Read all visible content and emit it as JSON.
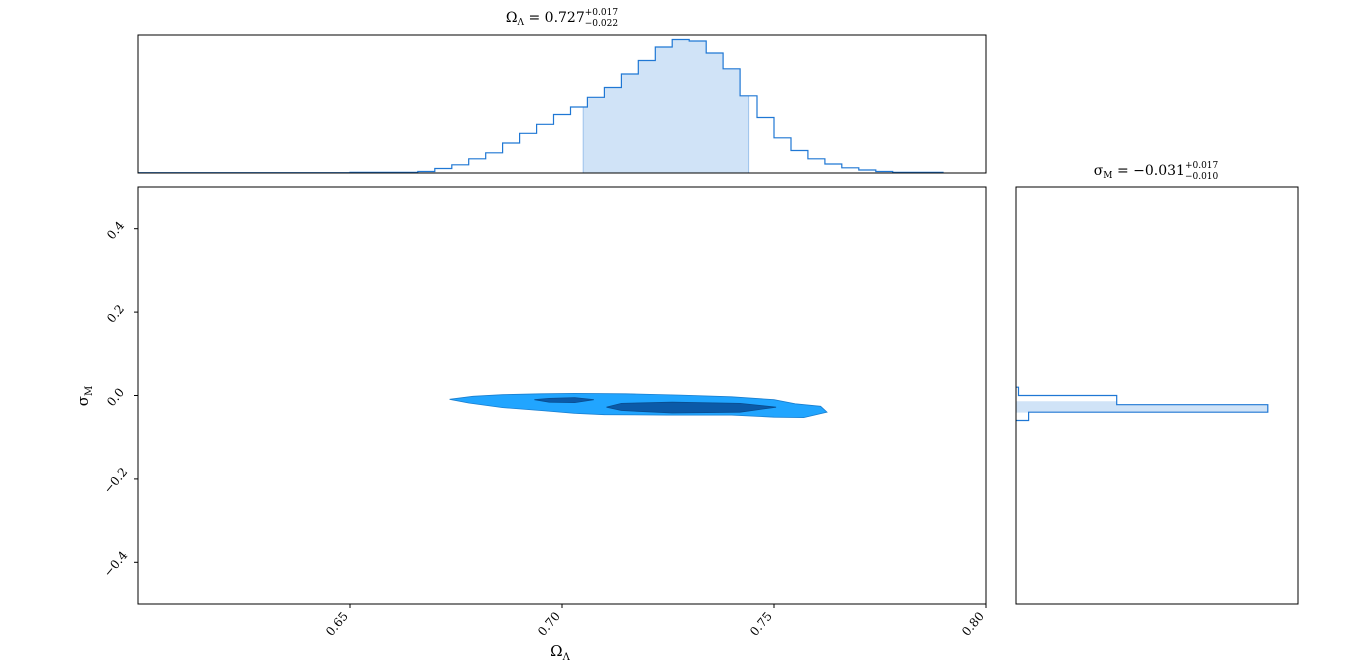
{
  "chart_data": [
    {
      "type": "histogram",
      "panel": "top-marginal",
      "title": {
        "symbol": "Ω",
        "sub": "Λ",
        "value": "0.727",
        "plus": "+0.017",
        "minus": "−0.022"
      },
      "xlim": [
        0.6,
        0.8
      ],
      "bins": [
        {
          "x0": 0.6,
          "x1": 0.65,
          "y": 0.2
        },
        {
          "x0": 0.65,
          "x1": 0.666,
          "y": 0.5
        },
        {
          "x0": 0.666,
          "x1": 0.67,
          "y": 1.0
        },
        {
          "x0": 0.67,
          "x1": 0.674,
          "y": 3.0
        },
        {
          "x0": 0.674,
          "x1": 0.678,
          "y": 5.5
        },
        {
          "x0": 0.678,
          "x1": 0.682,
          "y": 9.5
        },
        {
          "x0": 0.682,
          "x1": 0.686,
          "y": 13.5
        },
        {
          "x0": 0.686,
          "x1": 0.69,
          "y": 20.0
        },
        {
          "x0": 0.69,
          "x1": 0.694,
          "y": 26.5
        },
        {
          "x0": 0.694,
          "x1": 0.698,
          "y": 32.5
        },
        {
          "x0": 0.698,
          "x1": 0.702,
          "y": 39.0
        },
        {
          "x0": 0.702,
          "x1": 0.706,
          "y": 44.0
        },
        {
          "x0": 0.706,
          "x1": 0.71,
          "y": 50.5
        },
        {
          "x0": 0.71,
          "x1": 0.714,
          "y": 57.0
        },
        {
          "x0": 0.714,
          "x1": 0.718,
          "y": 66.0
        },
        {
          "x0": 0.718,
          "x1": 0.722,
          "y": 75.0
        },
        {
          "x0": 0.722,
          "x1": 0.726,
          "y": 84.0
        },
        {
          "x0": 0.726,
          "x1": 0.73,
          "y": 89.0
        },
        {
          "x0": 0.73,
          "x1": 0.734,
          "y": 88.0
        },
        {
          "x0": 0.734,
          "x1": 0.738,
          "y": 80.0
        },
        {
          "x0": 0.738,
          "x1": 0.742,
          "y": 69.5
        },
        {
          "x0": 0.742,
          "x1": 0.746,
          "y": 51.5
        },
        {
          "x0": 0.746,
          "x1": 0.75,
          "y": 37.0
        },
        {
          "x0": 0.75,
          "x1": 0.754,
          "y": 23.5
        },
        {
          "x0": 0.754,
          "x1": 0.758,
          "y": 15.0
        },
        {
          "x0": 0.758,
          "x1": 0.762,
          "y": 9.5
        },
        {
          "x0": 0.762,
          "x1": 0.766,
          "y": 6.0
        },
        {
          "x0": 0.766,
          "x1": 0.77,
          "y": 3.5
        },
        {
          "x0": 0.77,
          "x1": 0.774,
          "y": 2.0
        },
        {
          "x0": 0.774,
          "x1": 0.778,
          "y": 1.0
        },
        {
          "x0": 0.778,
          "x1": 0.79,
          "y": 0.5
        }
      ],
      "ymax": 92,
      "shaded_interval": [
        0.705,
        0.744
      ],
      "color": "#1f77d4",
      "fill": "#d0e3f7"
    },
    {
      "type": "contour",
      "panel": "joint",
      "xlabel": {
        "symbol": "Ω",
        "sub": "Λ"
      },
      "ylabel": {
        "symbol": "σ",
        "sub": "M"
      },
      "xlim": [
        0.6,
        0.8
      ],
      "ylim": [
        -0.5,
        0.5
      ],
      "xticks": [
        "0.65",
        "0.70",
        "0.75",
        "0.80"
      ],
      "xtick_values": [
        0.65,
        0.7,
        0.75,
        0.8
      ],
      "yticks": [
        "0.4",
        "0.2",
        "0.0",
        "−0.2",
        "−0.4"
      ],
      "ytick_values": [
        0.4,
        0.2,
        0.0,
        -0.2,
        -0.4
      ],
      "outer_contour": [
        [
          0.6735,
          -0.009
        ],
        [
          0.679,
          -0.002
        ],
        [
          0.686,
          0.002
        ],
        [
          0.695,
          0.004
        ],
        [
          0.703,
          0.005
        ],
        [
          0.715,
          0.004
        ],
        [
          0.728,
          0.001
        ],
        [
          0.74,
          -0.003
        ],
        [
          0.75,
          -0.01
        ],
        [
          0.755,
          -0.02
        ],
        [
          0.761,
          -0.026
        ],
        [
          0.7625,
          -0.04
        ],
        [
          0.757,
          -0.053
        ],
        [
          0.75,
          -0.052
        ],
        [
          0.74,
          -0.047
        ],
        [
          0.725,
          -0.047
        ],
        [
          0.71,
          -0.046
        ],
        [
          0.703,
          -0.043
        ],
        [
          0.696,
          -0.037
        ],
        [
          0.686,
          -0.029
        ],
        [
          0.678,
          -0.018
        ]
      ],
      "inner_contours": [
        [
          [
            0.6935,
            -0.01
          ],
          [
            0.697,
            -0.007
          ],
          [
            0.703,
            -0.005
          ],
          [
            0.7075,
            -0.01
          ],
          [
            0.703,
            -0.017
          ],
          [
            0.697,
            -0.016
          ]
        ],
        [
          [
            0.7105,
            -0.028
          ],
          [
            0.714,
            -0.019
          ],
          [
            0.726,
            -0.016
          ],
          [
            0.742,
            -0.019
          ],
          [
            0.7505,
            -0.028
          ],
          [
            0.742,
            -0.04
          ],
          [
            0.726,
            -0.042
          ],
          [
            0.714,
            -0.036
          ]
        ]
      ],
      "outer_color": "#21a5ff",
      "inner_color": "#0b5aa8"
    },
    {
      "type": "histogram",
      "orientation": "horizontal",
      "panel": "right-marginal",
      "title": {
        "symbol": "σ",
        "sub": "M",
        "value": "= −0.031",
        "plus": "+0.017",
        "minus": "−0.010"
      },
      "ylim": [
        -0.5,
        0.5
      ],
      "bins": [
        {
          "y0": 0.0,
          "y1": 0.02,
          "value": 0.01
        },
        {
          "y0": -0.006,
          "y1": 0.0,
          "value": 0.4
        },
        {
          "y0": -0.022,
          "y1": -0.006,
          "value": 0.4
        },
        {
          "y0": -0.04,
          "y1": -0.022,
          "value": 1.0
        },
        {
          "y0": -0.06,
          "y1": -0.04,
          "value": 0.05
        }
      ],
      "value_max": 1.12,
      "shaded_interval": [
        -0.041,
        -0.014
      ],
      "color": "#1f77d4",
      "fill": "#d0e3f7"
    }
  ]
}
